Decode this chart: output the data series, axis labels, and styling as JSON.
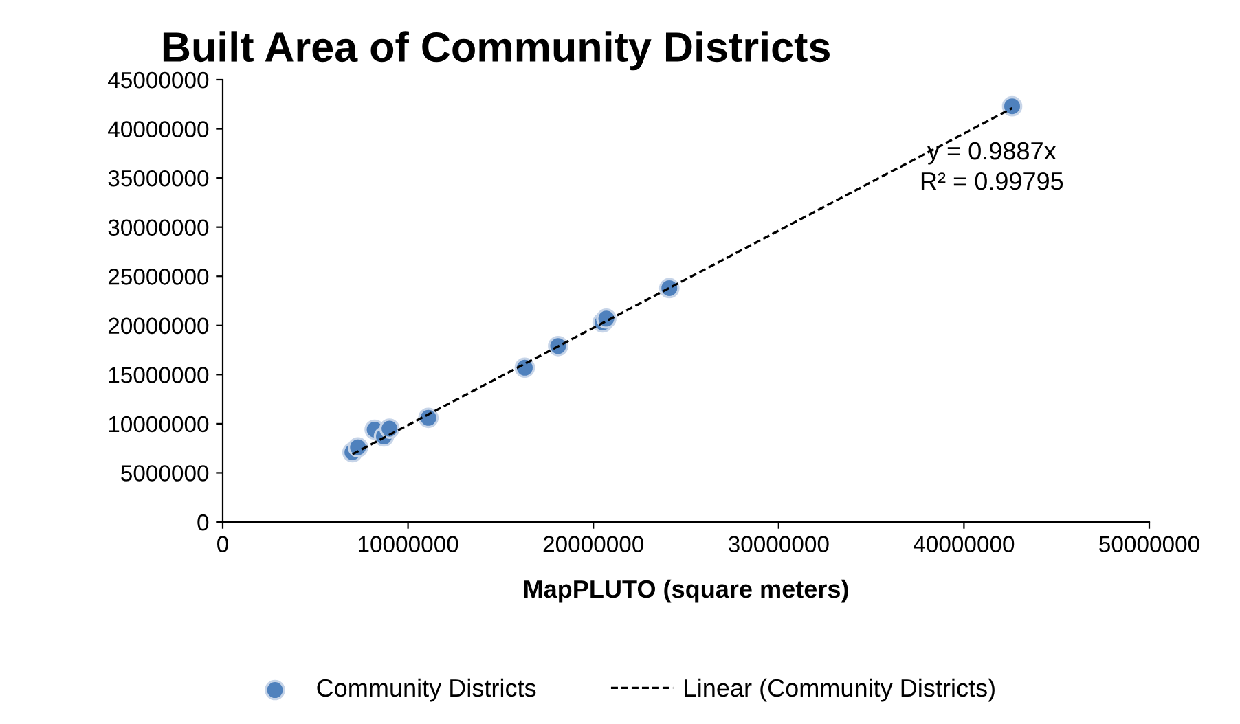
{
  "chart_data": {
    "type": "scatter",
    "title": "Built Area of Community Districts",
    "xlabel": "MapPLUTO (square meters)",
    "series": [
      {
        "name": "Community Districts",
        "color": "#4f81bd",
        "marker": "circle",
        "x": [
          7000000,
          7300000,
          8200000,
          8700000,
          9000000,
          11100000,
          16300000,
          18100000,
          20500000,
          20700000,
          24100000,
          42600000
        ],
        "values": [
          7100000,
          7600000,
          9400000,
          8700000,
          9500000,
          10600000,
          15700000,
          17900000,
          20300000,
          20700000,
          23800000,
          42300000
        ]
      },
      {
        "name": "Linear (Community Districts)",
        "type": "line",
        "color": "#000000",
        "line_style": "dashed",
        "marker": "none",
        "x": [
          7000000,
          42600000
        ],
        "values": [
          6900000,
          42100000
        ]
      }
    ],
    "annotations": [
      "y = 0.9887x\nR² = 0.99795"
    ],
    "xlim": [
      0,
      50000000
    ],
    "xticks": [
      0,
      10000000,
      20000000,
      30000000,
      40000000,
      50000000
    ],
    "ylim": [
      0,
      45000000
    ],
    "yticks": [
      0,
      5000000,
      10000000,
      15000000,
      20000000,
      25000000,
      30000000,
      35000000,
      40000000,
      45000000
    ],
    "grid": false,
    "legend": "bottom"
  }
}
